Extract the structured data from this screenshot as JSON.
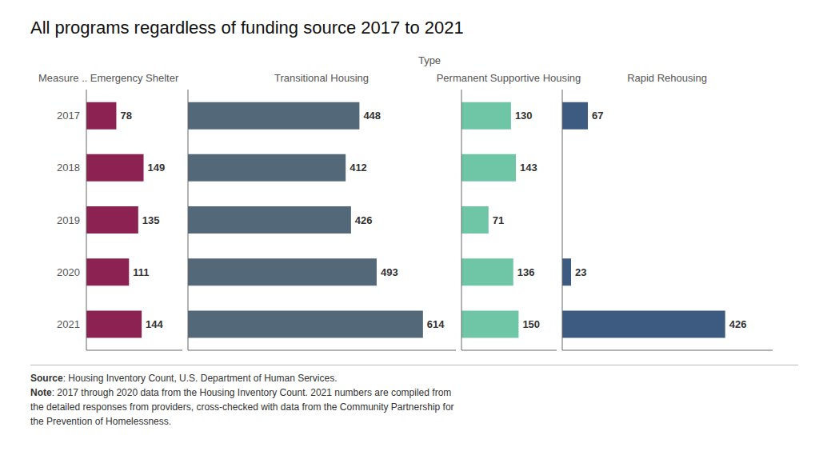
{
  "title": "All programs regardless of funding source 2017 to 2021",
  "annotations": [
    "Type",
    "Source: Housing Inventory Count, U.S. Department of Human Services.",
    "Note: 2017 through 2020 data from the Housing Inventory Count. 2021 numbers are compiled from\nthe detailed responses from providers, cross-checked with data from the Community Partnership for\nthe Prevention of Homelessness."
  ],
  "chart_data": [
    {
      "type": "bar",
      "orientation": "horizontal",
      "title": "Emergency Shelter",
      "ylabel": "Measure ..",
      "categories": [
        2017,
        2018,
        2019,
        2020,
        2021
      ],
      "values": [
        78,
        149,
        135,
        111,
        144
      ],
      "color": "#8B2252",
      "xlim": [
        0,
        250
      ],
      "data_labels": true,
      "tick_labels": "y"
    },
    {
      "type": "bar",
      "orientation": "horizontal",
      "title": "Transitional Housing",
      "categories": [
        2017,
        2018,
        2019,
        2020,
        2021
      ],
      "values": [
        448,
        412,
        426,
        493,
        614
      ],
      "color": "#536878",
      "xlim": [
        0,
        700
      ],
      "data_labels": true,
      "tick_labels": false
    },
    {
      "type": "bar",
      "orientation": "horizontal",
      "title": "Permanent Supportive Housing",
      "categories": [
        2017,
        2018,
        2019,
        2020,
        2021
      ],
      "values": [
        130,
        143,
        71,
        136,
        150
      ],
      "color": "#6EC6A6",
      "xlim": [
        0,
        250
      ],
      "data_labels": true,
      "tick_labels": false
    },
    {
      "type": "bar",
      "orientation": "horizontal",
      "title": "Rapid Rehousing",
      "categories": [
        2017,
        2018,
        2019,
        2020,
        2021
      ],
      "values": [
        67,
        0,
        0,
        23,
        426
      ],
      "color": "#3D5A80",
      "xlim": [
        0,
        550
      ],
      "data_labels": true,
      "tick_labels": false
    }
  ]
}
